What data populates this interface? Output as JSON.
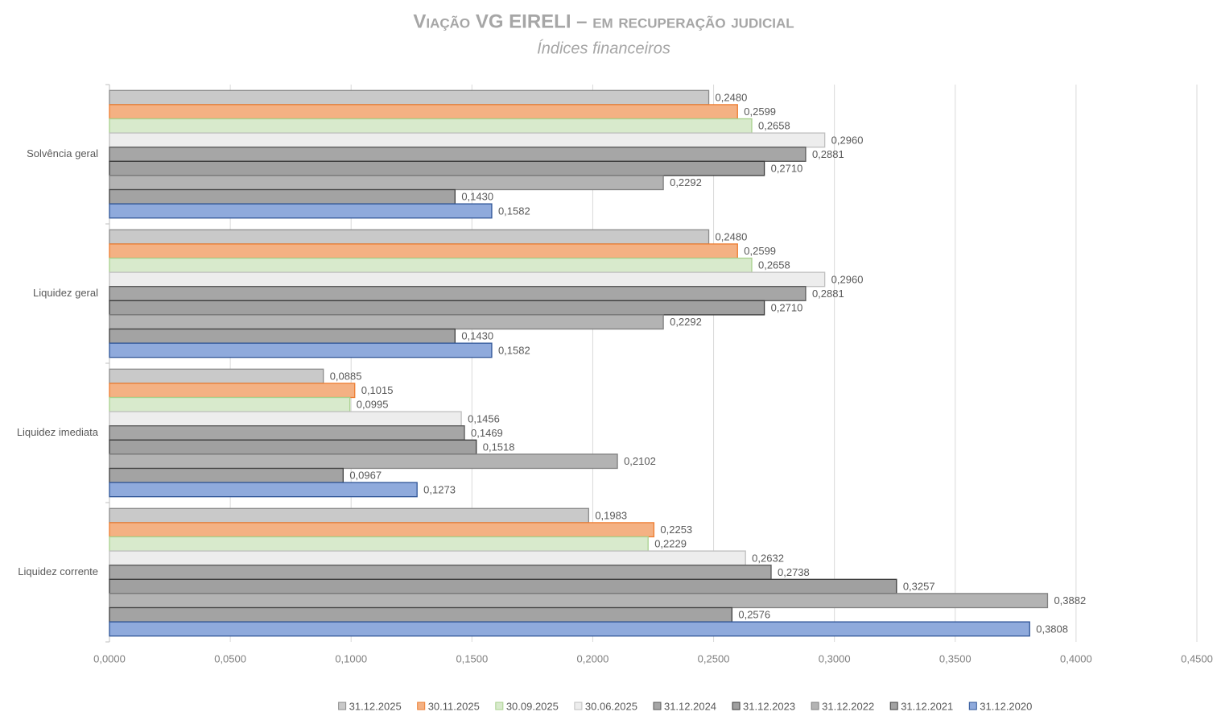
{
  "chart_data": {
    "type": "barh",
    "title": "Viação VG EIRELI – em recuperação judicial",
    "subtitle": "Índices financeiros",
    "categories": [
      "Solvência geral",
      "Liquidez geral",
      "Liquidez imediata",
      "Liquidez corrente"
    ],
    "series": [
      {
        "name": "31.12.2025",
        "color": "#c9c9c9",
        "edgecolor": "#8c8c8c",
        "values": [
          0.248,
          0.248,
          0.0885,
          0.1983
        ],
        "value_labels": [
          "0,2480",
          "0,2480",
          "0,0885",
          "0,1983"
        ]
      },
      {
        "name": "30.11.2025",
        "color": "#f4b183",
        "edgecolor": "#ed7d31",
        "values": [
          0.2599,
          0.2599,
          0.1015,
          0.2253
        ],
        "value_labels": [
          "0,2599",
          "0,2599",
          "0,1015",
          "0,2253"
        ]
      },
      {
        "name": "30.09.2025",
        "color": "#d8eacc",
        "edgecolor": "#a9d18e",
        "values": [
          0.2658,
          0.2658,
          0.0995,
          0.2229
        ],
        "value_labels": [
          "0,2658",
          "0,2658",
          "0,0995",
          "0,2229"
        ]
      },
      {
        "name": "30.06.2025",
        "color": "#ededed",
        "edgecolor": "#bfbfbf",
        "values": [
          0.296,
          0.296,
          0.1456,
          0.2632
        ],
        "value_labels": [
          "0,2960",
          "0,2960",
          "0,1456",
          "0,2632"
        ]
      },
      {
        "name": "31.12.2024",
        "color": "#a6a6a6",
        "edgecolor": "#595959",
        "values": [
          0.2881,
          0.2881,
          0.1469,
          0.2738
        ],
        "value_labels": [
          "0,2881",
          "0,2881",
          "0,1469",
          "0,2738"
        ]
      },
      {
        "name": "31.12.2023",
        "color": "#a0a0a0",
        "edgecolor": "#3a3a3a",
        "values": [
          0.271,
          0.271,
          0.1518,
          0.3257
        ],
        "value_labels": [
          "0,2710",
          "0,2710",
          "0,1518",
          "0,3257"
        ]
      },
      {
        "name": "31.12.2022",
        "color": "#b3b3b3",
        "edgecolor": "#7f7f7f",
        "values": [
          0.2292,
          0.2292,
          0.2102,
          0.3882
        ],
        "value_labels": [
          "0,2292",
          "0,2292",
          "0,2102",
          "0,3882"
        ]
      },
      {
        "name": "31.12.2021",
        "color": "#a3a3a3",
        "edgecolor": "#404040",
        "values": [
          0.143,
          0.143,
          0.0967,
          0.2576
        ],
        "value_labels": [
          "0,1430",
          "0,1430",
          "0,0967",
          "0,2576"
        ]
      },
      {
        "name": "31.12.2020",
        "color": "#8faadc",
        "edgecolor": "#2f5597",
        "values": [
          0.1582,
          0.1582,
          0.1273,
          0.3808
        ],
        "value_labels": [
          "0,1582",
          "0,1582",
          "0,1273",
          "0,3808"
        ]
      }
    ],
    "xlim": [
      0,
      0.45
    ],
    "xticks": [
      {
        "value": 0,
        "label": "0,0000"
      },
      {
        "value": 0.05,
        "label": "0,0500"
      },
      {
        "value": 0.1,
        "label": "0,1000"
      },
      {
        "value": 0.15,
        "label": "0,1500"
      },
      {
        "value": 0.2,
        "label": "0,2000"
      },
      {
        "value": 0.25,
        "label": "0,2500"
      },
      {
        "value": 0.3,
        "label": "0,3000"
      },
      {
        "value": 0.35,
        "label": "0,3500"
      },
      {
        "value": 0.4,
        "label": "0,4000"
      },
      {
        "value": 0.45,
        "label": "0,4500"
      }
    ],
    "grid": true,
    "legend": "bottom"
  }
}
